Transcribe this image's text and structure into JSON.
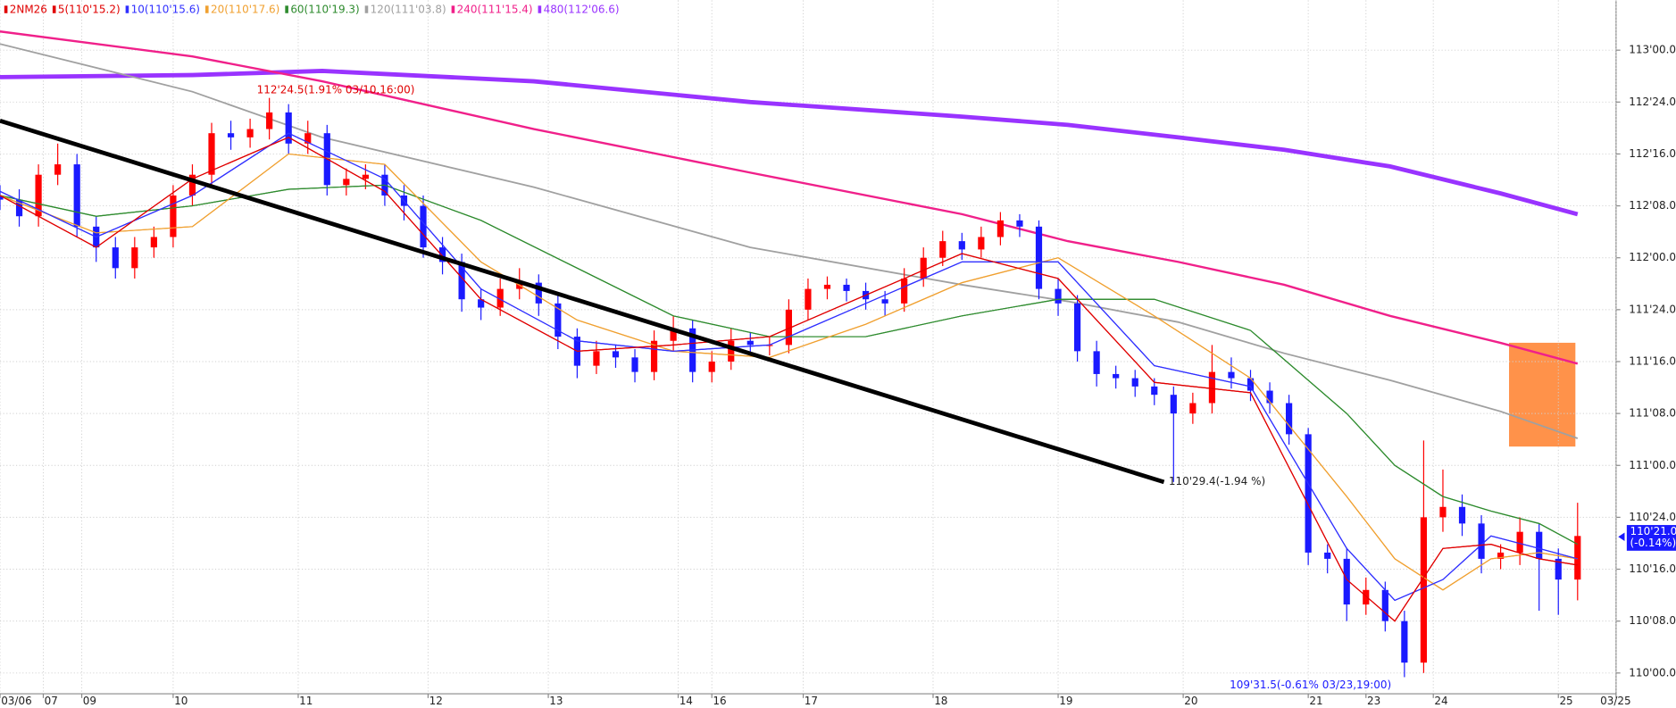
{
  "chart_data": {
    "type": "candlestick",
    "symbol": "2NM26",
    "symbol_color": "#e00000",
    "up_color": "#ff0000",
    "down_color": "#1a1aff",
    "ylim": [
      109.9,
      113.24
    ],
    "xlim": [
      0,
      336
    ],
    "grid": true,
    "yticks": [
      {
        "value": 113,
        "label": "113'00.0"
      },
      {
        "value": 112.75,
        "label": "112'24.0"
      },
      {
        "value": 112.5,
        "label": "112'16.0"
      },
      {
        "value": 112.25,
        "label": "112'08.0"
      },
      {
        "value": 112,
        "label": "112'00.0"
      },
      {
        "value": 111.75,
        "label": "111'24.0"
      },
      {
        "value": 111.5,
        "label": "111'16.0"
      },
      {
        "value": 111.25,
        "label": "111'08.0"
      },
      {
        "value": 111,
        "label": "111'00.0"
      },
      {
        "value": 110.75,
        "label": "110'24.0"
      },
      {
        "value": 110.5,
        "label": "110'16.0"
      },
      {
        "value": 110.25,
        "label": "110'08.0"
      },
      {
        "value": 110,
        "label": "110'00.0"
      }
    ],
    "xticks": [
      {
        "value": 0,
        "label": "03/06"
      },
      {
        "value": 9,
        "label": "07"
      },
      {
        "value": 17,
        "label": "09"
      },
      {
        "value": 36,
        "label": "10"
      },
      {
        "value": 62,
        "label": "11"
      },
      {
        "value": 89,
        "label": "12"
      },
      {
        "value": 114,
        "label": "13"
      },
      {
        "value": 141,
        "label": "14"
      },
      {
        "value": 148,
        "label": "16"
      },
      {
        "value": 167,
        "label": "17"
      },
      {
        "value": 194,
        "label": "18"
      },
      {
        "value": 220,
        "label": "19"
      },
      {
        "value": 246,
        "label": "20"
      },
      {
        "value": 272,
        "label": "21"
      },
      {
        "value": 284,
        "label": "23"
      },
      {
        "value": 298,
        "label": "24"
      },
      {
        "value": 324,
        "label": "25"
      },
      {
        "value": 336,
        "label": "03/25"
      }
    ],
    "candles": {
      "x": [
        0,
        4,
        8,
        12,
        16,
        20,
        24,
        28,
        32,
        36,
        40,
        44,
        48,
        52,
        56,
        60,
        64,
        68,
        72,
        76,
        80,
        84,
        88,
        92,
        96,
        100,
        104,
        108,
        112,
        116,
        120,
        124,
        128,
        132,
        136,
        140,
        144,
        148,
        152,
        156,
        160,
        164,
        168,
        172,
        176,
        180,
        184,
        188,
        192,
        196,
        200,
        204,
        208,
        212,
        216,
        220,
        224,
        228,
        232,
        236,
        240,
        244,
        248,
        252,
        256,
        260,
        264,
        268,
        272,
        276,
        280,
        284,
        288,
        292,
        296,
        300,
        304,
        308,
        312,
        316,
        320,
        324,
        328
      ],
      "open": [
        112.3,
        112.28,
        112.2,
        112.4,
        112.45,
        112.15,
        112.05,
        111.95,
        112.05,
        112.1,
        112.3,
        112.4,
        112.6,
        112.58,
        112.62,
        112.7,
        112.55,
        112.6,
        112.35,
        112.38,
        112.4,
        112.3,
        112.25,
        112.05,
        111.98,
        111.8,
        111.76,
        111.85,
        111.88,
        111.78,
        111.62,
        111.48,
        111.55,
        111.52,
        111.45,
        111.6,
        111.66,
        111.45,
        111.5,
        111.6,
        111.58,
        111.58,
        111.75,
        111.85,
        111.87,
        111.84,
        111.8,
        111.78,
        111.9,
        112.0,
        112.08,
        112.04,
        112.1,
        112.18,
        112.15,
        111.85,
        111.78,
        111.55,
        111.44,
        111.42,
        111.38,
        111.34,
        111.25,
        111.3,
        111.45,
        111.42,
        111.36,
        111.3,
        111.15,
        110.58,
        110.55,
        110.33,
        110.4,
        110.25,
        110.05,
        110.75,
        110.8,
        110.72,
        110.55,
        110.58,
        110.68,
        110.55,
        110.45
      ],
      "high": [
        112.35,
        112.33,
        112.45,
        112.55,
        112.5,
        112.2,
        112.1,
        112.1,
        112.15,
        112.35,
        112.45,
        112.65,
        112.66,
        112.67,
        112.77,
        112.74,
        112.66,
        112.64,
        112.43,
        112.45,
        112.45,
        112.35,
        112.3,
        112.1,
        112.02,
        111.85,
        111.9,
        111.95,
        111.92,
        111.82,
        111.66,
        111.6,
        111.58,
        111.56,
        111.65,
        111.72,
        111.7,
        111.55,
        111.66,
        111.64,
        111.62,
        111.8,
        111.9,
        111.91,
        111.9,
        111.88,
        111.84,
        111.95,
        112.05,
        112.13,
        112.12,
        112.15,
        112.22,
        112.21,
        112.18,
        111.9,
        111.82,
        111.6,
        111.48,
        111.46,
        111.42,
        111.38,
        111.35,
        111.58,
        111.52,
        111.46,
        111.4,
        111.34,
        111.18,
        110.62,
        110.6,
        110.46,
        110.44,
        110.3,
        111.12,
        110.98,
        110.86,
        110.76,
        110.62,
        110.75,
        110.72,
        110.6,
        110.82
      ],
      "low": [
        112.23,
        112.15,
        112.15,
        112.35,
        112.1,
        111.98,
        111.9,
        111.9,
        112.0,
        112.05,
        112.25,
        112.35,
        112.52,
        112.53,
        112.57,
        112.5,
        112.5,
        112.3,
        112.3,
        112.33,
        112.25,
        112.18,
        112.0,
        111.92,
        111.74,
        111.7,
        111.72,
        111.8,
        111.72,
        111.56,
        111.42,
        111.44,
        111.47,
        111.4,
        111.41,
        111.55,
        111.4,
        111.4,
        111.46,
        111.53,
        111.53,
        111.54,
        111.7,
        111.8,
        111.79,
        111.75,
        111.72,
        111.74,
        111.86,
        111.96,
        111.99,
        112.0,
        112.06,
        112.1,
        111.8,
        111.72,
        111.5,
        111.38,
        111.37,
        111.33,
        111.29,
        110.92,
        111.2,
        111.25,
        111.37,
        111.31,
        111.25,
        111.1,
        110.52,
        110.48,
        110.25,
        110.28,
        110.2,
        109.98,
        110.0,
        110.68,
        110.66,
        110.48,
        110.5,
        110.52,
        110.3,
        110.28,
        110.35
      ],
      "close": [
        112.28,
        112.2,
        112.4,
        112.45,
        112.15,
        112.05,
        111.95,
        112.05,
        112.1,
        112.3,
        112.4,
        112.6,
        112.58,
        112.62,
        112.7,
        112.55,
        112.6,
        112.35,
        112.38,
        112.4,
        112.3,
        112.25,
        112.05,
        111.98,
        111.8,
        111.76,
        111.85,
        111.88,
        111.78,
        111.62,
        111.48,
        111.55,
        111.52,
        111.45,
        111.6,
        111.66,
        111.45,
        111.5,
        111.6,
        111.58,
        111.58,
        111.75,
        111.85,
        111.87,
        111.84,
        111.8,
        111.78,
        111.9,
        112.0,
        112.08,
        112.04,
        112.1,
        112.18,
        112.15,
        111.85,
        111.78,
        111.55,
        111.44,
        111.42,
        111.38,
        111.34,
        111.25,
        111.3,
        111.45,
        111.42,
        111.36,
        111.3,
        111.15,
        110.58,
        110.55,
        110.33,
        110.4,
        110.25,
        110.05,
        110.75,
        110.8,
        110.72,
        110.55,
        110.58,
        110.68,
        110.55,
        110.45,
        110.66
      ]
    },
    "series": [
      {
        "name": "5(110'15.2)",
        "color": "#e00000",
        "width": 1,
        "x": [
          0,
          20,
          40,
          60,
          80,
          100,
          120,
          140,
          160,
          180,
          200,
          220,
          240,
          260,
          280,
          290,
          300,
          310,
          320,
          328
        ],
        "values": [
          112.3,
          112.05,
          112.38,
          112.58,
          112.32,
          111.8,
          111.55,
          111.58,
          111.62,
          111.82,
          112.02,
          111.9,
          111.4,
          111.35,
          110.45,
          110.25,
          110.6,
          110.62,
          110.55,
          110.52
        ]
      },
      {
        "name": "10(110'15.6)",
        "color": "#3030ff",
        "width": 1,
        "x": [
          0,
          20,
          40,
          60,
          80,
          100,
          120,
          140,
          160,
          180,
          200,
          220,
          240,
          260,
          280,
          290,
          300,
          310,
          320,
          328
        ],
        "values": [
          112.32,
          112.1,
          112.3,
          112.6,
          112.38,
          111.85,
          111.6,
          111.55,
          111.58,
          111.78,
          111.98,
          111.98,
          111.48,
          111.38,
          110.6,
          110.35,
          110.45,
          110.66,
          110.6,
          110.55
        ]
      },
      {
        "name": "20(110'17.6)",
        "color": "#f0a030",
        "width": 1,
        "x": [
          0,
          20,
          40,
          60,
          80,
          100,
          120,
          140,
          160,
          180,
          200,
          220,
          240,
          260,
          280,
          290,
          300,
          310,
          320,
          328
        ],
        "values": [
          112.3,
          112.12,
          112.15,
          112.5,
          112.45,
          111.98,
          111.7,
          111.55,
          111.52,
          111.68,
          111.88,
          112.0,
          111.72,
          111.42,
          110.85,
          110.55,
          110.4,
          110.55,
          110.58,
          110.55
        ]
      },
      {
        "name": "60(110'19.3)",
        "color": "#2e8b2e",
        "width": 1,
        "x": [
          0,
          20,
          40,
          60,
          80,
          100,
          120,
          140,
          160,
          180,
          200,
          220,
          240,
          260,
          280,
          290,
          300,
          310,
          320,
          328
        ],
        "values": [
          112.3,
          112.2,
          112.25,
          112.33,
          112.35,
          112.18,
          111.95,
          111.72,
          111.62,
          111.62,
          111.72,
          111.8,
          111.8,
          111.65,
          111.25,
          111.0,
          110.85,
          110.78,
          110.72,
          110.62
        ]
      },
      {
        "name": "120(111'03.8)",
        "color": "#a0a0a0",
        "width": 1.5,
        "x": [
          0,
          40,
          67,
          111,
          156,
          200,
          222,
          245,
          267,
          289,
          312,
          328
        ],
        "values": [
          113.03,
          112.8,
          112.58,
          112.34,
          112.05,
          111.87,
          111.79,
          111.69,
          111.54,
          111.41,
          111.26,
          111.13
        ]
      },
      {
        "name": "240(111'15.4)",
        "color": "#f0208a",
        "width": 2,
        "x": [
          0,
          40,
          67,
          111,
          156,
          200,
          222,
          245,
          267,
          289,
          312,
          328
        ],
        "values": [
          113.09,
          112.97,
          112.85,
          112.62,
          112.41,
          112.21,
          112.08,
          111.98,
          111.87,
          111.72,
          111.59,
          111.49
        ]
      },
      {
        "name": "480(112'06.6)",
        "color": "#9933ff",
        "width": 4,
        "x": [
          0,
          40,
          67,
          111,
          156,
          200,
          222,
          245,
          267,
          289,
          312,
          328
        ],
        "values": [
          112.87,
          112.88,
          112.9,
          112.85,
          112.75,
          112.68,
          112.64,
          112.58,
          112.52,
          112.44,
          112.31,
          112.21
        ]
      }
    ],
    "trendline": {
      "color": "#000000",
      "x": [
        0,
        242
      ],
      "values": [
        112.66,
        110.92
      ],
      "label": "110'29.4(-1.94 %)"
    },
    "high_note": "112'24.5(1.91% 03/10,16:00)",
    "low_note": "109'31.5(-0.61% 03/23,19:00)",
    "last_price": {
      "value": 110.656,
      "label": "110'21.0",
      "change": "(-0.14%)"
    }
  }
}
